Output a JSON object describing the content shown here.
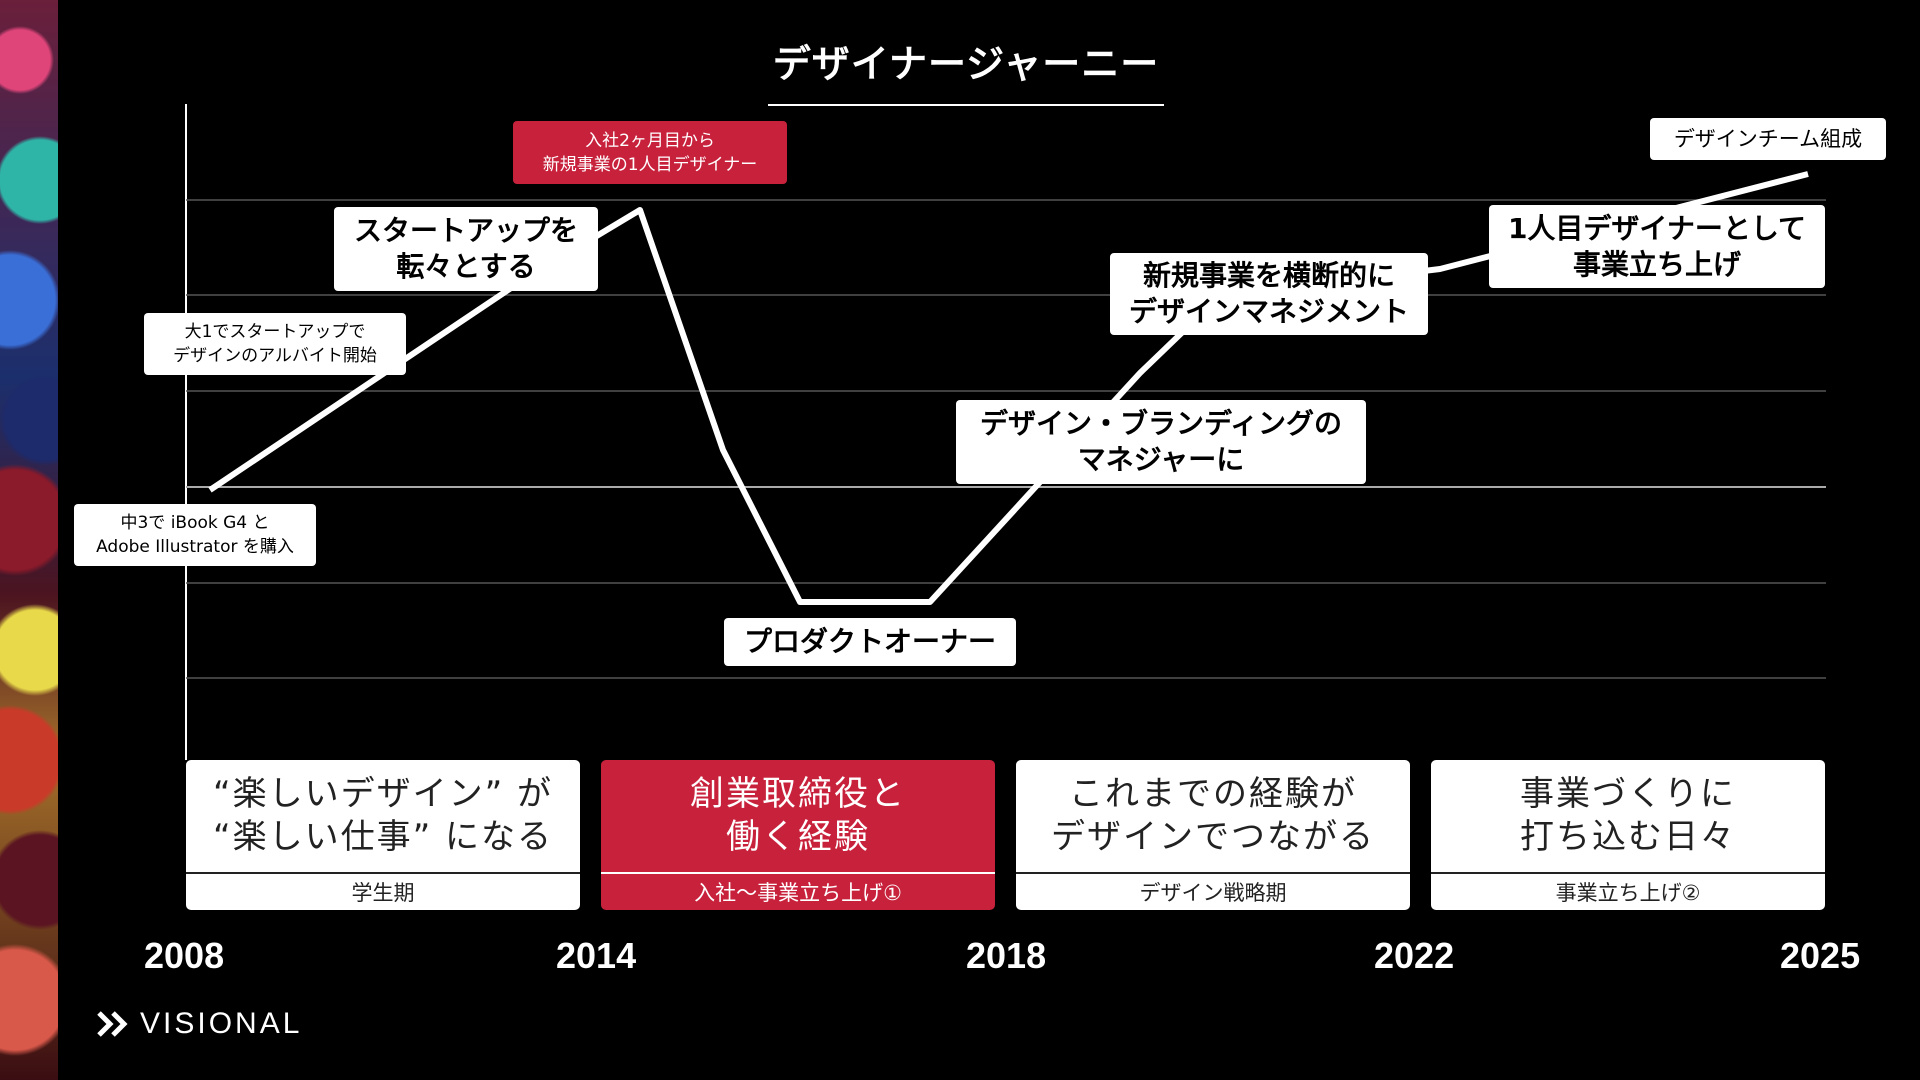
{
  "title": "デザイナージャーニー",
  "events": {
    "ibook": "中3で iBook G4 と\nAdobe Illustrator を購入",
    "parttime": "大1でスタートアップで\nデザインのアルバイト開始",
    "startup": "スタートアップを\n転々とする",
    "join": "入社2ヶ月目から\n新規事業の1人目デザイナー",
    "po": "プロダクトオーナー",
    "manager": "デザイン・ブランディングの\nマネジャーに",
    "cross": "新規事業を横断的に\nデザインマネジメント",
    "first": "1人目デザイナーとして\n事業立ち上げ",
    "team": "デザインチーム組成"
  },
  "phases": [
    {
      "main": "“楽しいデザイン” が\n“楽しい仕事” になる",
      "sub": "学生期"
    },
    {
      "main": "創業取締役と\n働く経験",
      "sub": "入社〜事業立ち上げ①"
    },
    {
      "main": "これまでの経験が\nデザインでつながる",
      "sub": "デザイン戦略期"
    },
    {
      "main": "事業づくりに\n打ち込む日々",
      "sub": "事業立ち上げ②"
    }
  ],
  "years": [
    "2008",
    "2014",
    "2018",
    "2022",
    "2025"
  ],
  "logo": {
    "text": "VISIONAL",
    "icon": "chevron-double-icon"
  },
  "colors": {
    "accent": "#c8213c",
    "background": "#000000",
    "line": "#ffffff"
  }
}
